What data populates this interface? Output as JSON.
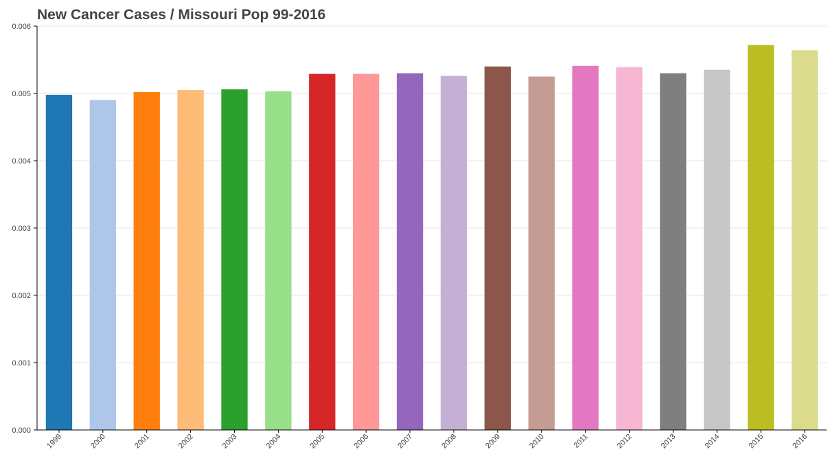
{
  "chart_data": {
    "type": "bar",
    "title": "New Cancer Cases / Missouri Pop 99-2016",
    "xlabel": "",
    "ylabel": "",
    "categories": [
      "1999",
      "2000",
      "2001",
      "2002",
      "2003",
      "2004",
      "2005",
      "2006",
      "2007",
      "2008",
      "2009",
      "2010",
      "2011",
      "2012",
      "2013",
      "2014",
      "2015",
      "2016"
    ],
    "values": [
      0.00498,
      0.0049,
      0.00502,
      0.00505,
      0.00506,
      0.00503,
      0.00529,
      0.00529,
      0.0053,
      0.00526,
      0.0054,
      0.00525,
      0.00541,
      0.00539,
      0.0053,
      0.00535,
      0.00572,
      0.00564
    ],
    "colors": [
      "#1f77b4",
      "#aec7e8",
      "#ff7f0e",
      "#ffbb78",
      "#2ca02c",
      "#98df8a",
      "#d62728",
      "#ff9896",
      "#9467bd",
      "#c5b0d5",
      "#8c564b",
      "#c49c94",
      "#e377c2",
      "#f7b6d2",
      "#7f7f7f",
      "#c7c7c7",
      "#bcbd22",
      "#dbdb8d"
    ],
    "ylim": [
      0,
      0.006
    ],
    "yticks": [
      "0.000",
      "0.001",
      "0.002",
      "0.003",
      "0.004",
      "0.005",
      "0.006"
    ],
    "grid": true,
    "legend": false
  }
}
